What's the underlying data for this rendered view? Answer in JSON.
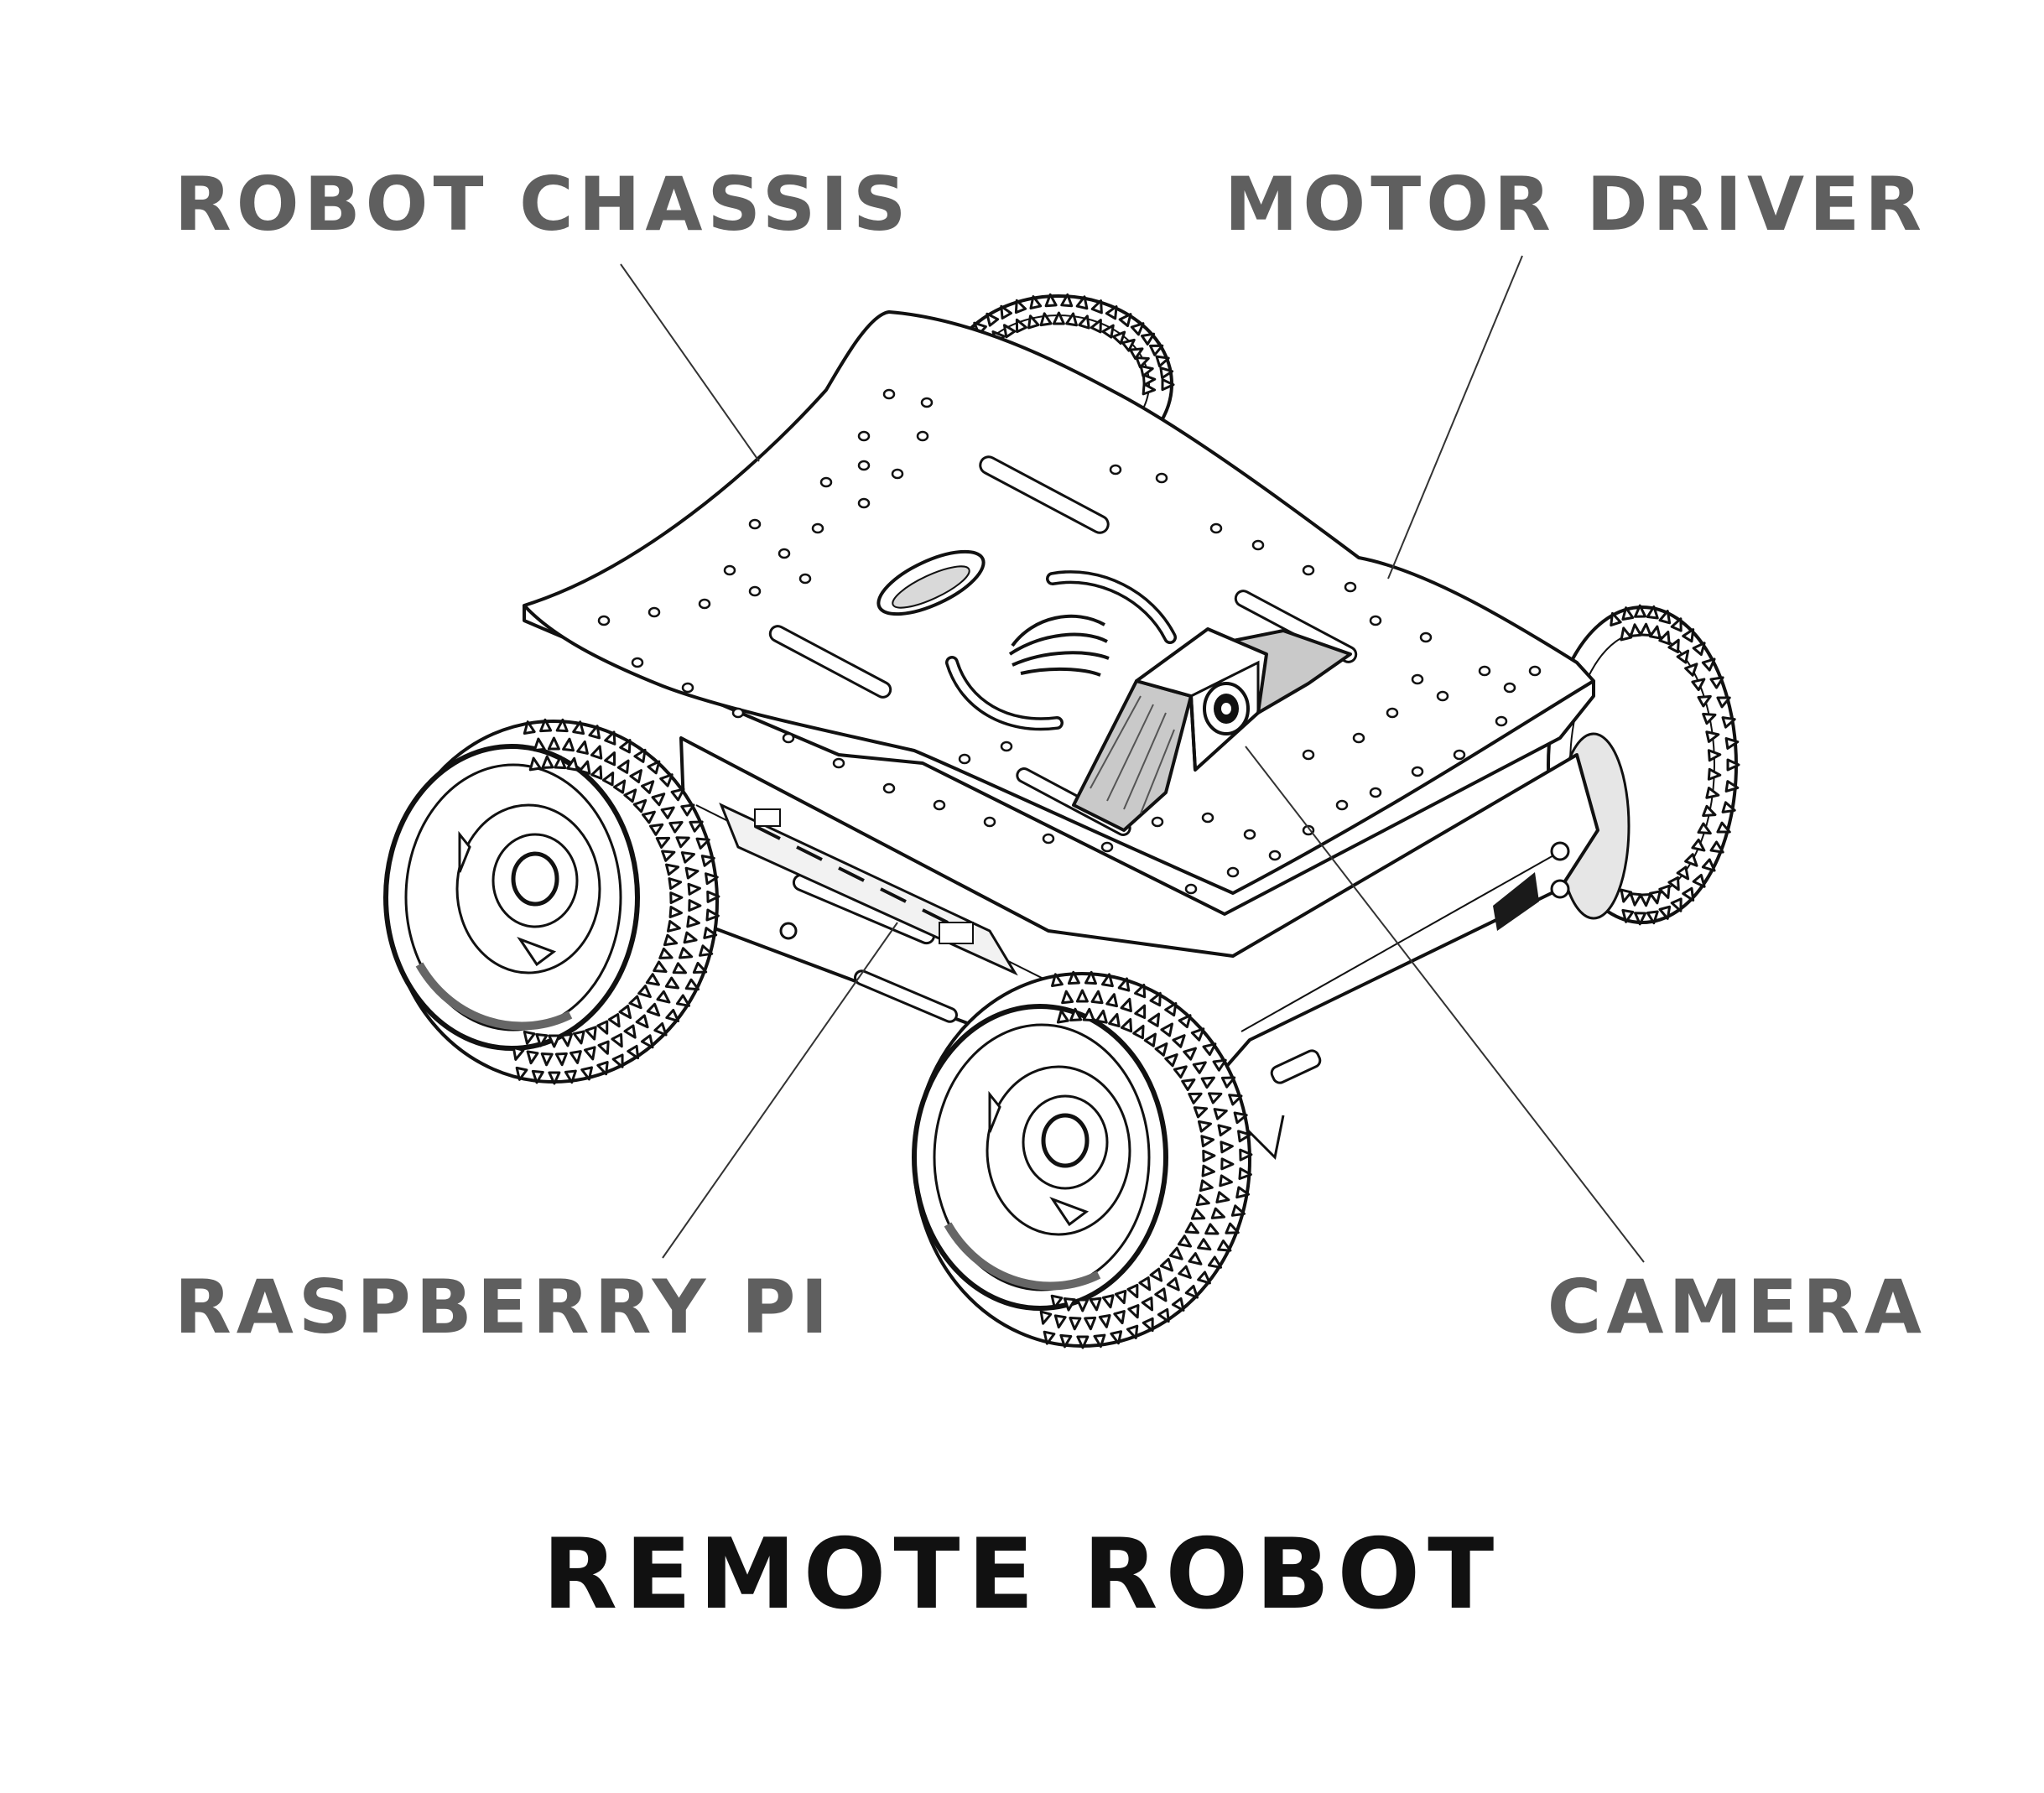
{
  "diagram": {
    "title": "REMOTE ROBOT",
    "callouts": {
      "chassis": "ROBOT CHASSIS",
      "motor_driver": "MOTOR DRIVER",
      "raspberry_pi": "RASPBERRY PI",
      "camera": "CAMERA"
    },
    "colors": {
      "callout_text": "#5f5f5f",
      "title_text": "#111111",
      "line_art": "#111111",
      "leader_line": "#333333",
      "background": "#ffffff"
    }
  }
}
